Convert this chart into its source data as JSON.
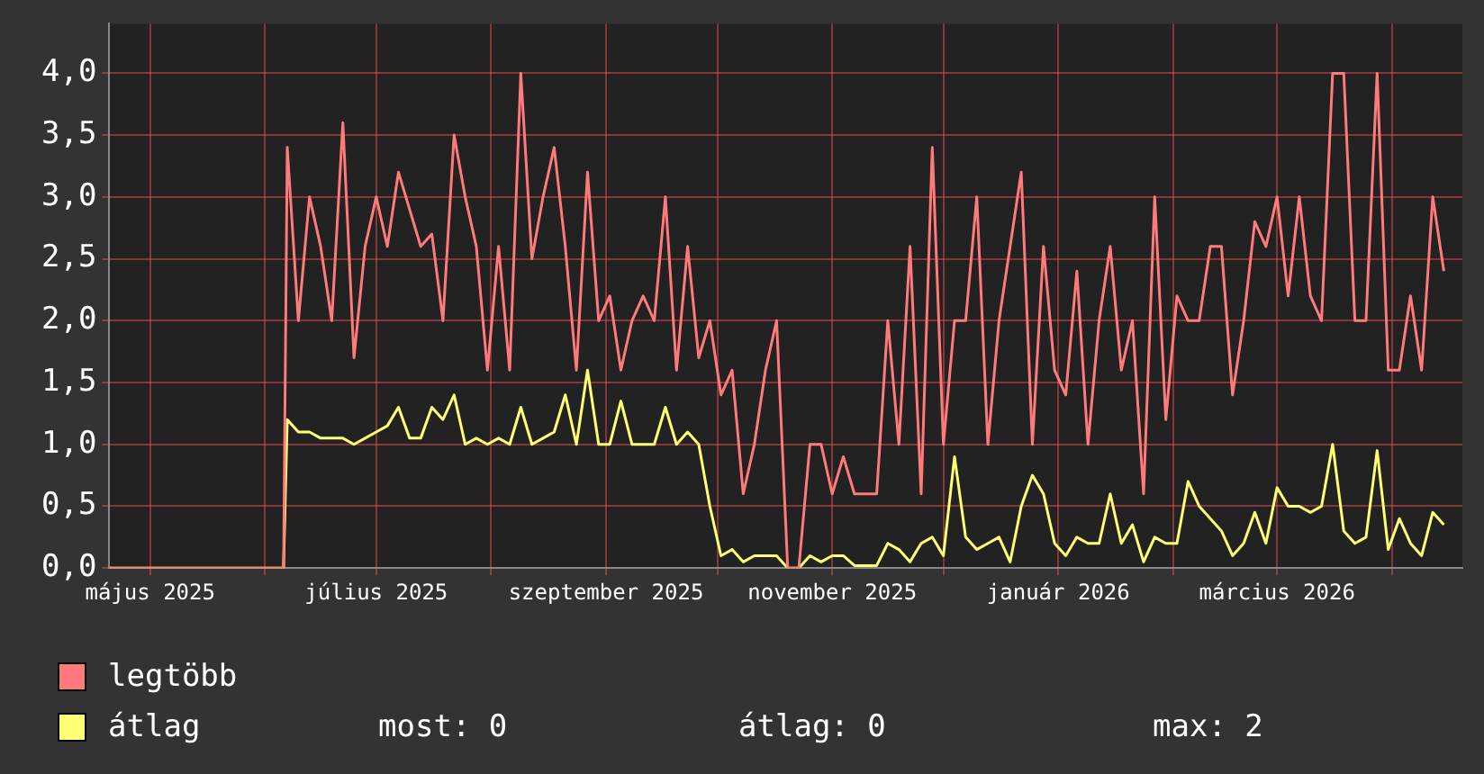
{
  "chart_data": {
    "type": "line",
    "x": [
      "2025-04-20",
      "2025-06-06",
      "2025-06-07",
      "2025-06-10",
      "2025-06-13",
      "2025-06-16",
      "2025-06-19",
      "2025-06-22",
      "2025-06-25",
      "2025-06-28",
      "2025-07-01",
      "2025-07-04",
      "2025-07-07",
      "2025-07-10",
      "2025-07-13",
      "2025-07-16",
      "2025-07-19",
      "2025-07-22",
      "2025-07-25",
      "2025-07-28",
      "2025-07-31",
      "2025-08-03",
      "2025-08-06",
      "2025-08-09",
      "2025-08-12",
      "2025-08-15",
      "2025-08-18",
      "2025-08-21",
      "2025-08-24",
      "2025-08-27",
      "2025-08-30",
      "2025-09-02",
      "2025-09-05",
      "2025-09-08",
      "2025-09-11",
      "2025-09-14",
      "2025-09-17",
      "2025-09-20",
      "2025-09-23",
      "2025-09-26",
      "2025-09-29",
      "2025-10-02",
      "2025-10-05",
      "2025-10-08",
      "2025-10-11",
      "2025-10-14",
      "2025-10-17",
      "2025-10-20",
      "2025-10-23",
      "2025-10-26",
      "2025-10-29",
      "2025-11-01",
      "2025-11-04",
      "2025-11-07",
      "2025-11-10",
      "2025-11-13",
      "2025-11-16",
      "2025-11-19",
      "2025-11-22",
      "2025-11-25",
      "2025-11-28",
      "2025-12-01",
      "2025-12-04",
      "2025-12-07",
      "2025-12-10",
      "2025-12-13",
      "2025-12-16",
      "2025-12-19",
      "2025-12-22",
      "2025-12-25",
      "2025-12-28",
      "2025-12-31",
      "2026-01-03",
      "2026-01-06",
      "2026-01-09",
      "2026-01-12",
      "2026-01-15",
      "2026-01-18",
      "2026-01-21",
      "2026-01-24",
      "2026-01-27",
      "2026-01-30",
      "2026-02-02",
      "2026-02-05",
      "2026-02-08",
      "2026-02-11",
      "2026-02-14",
      "2026-02-17",
      "2026-02-20",
      "2026-02-23",
      "2026-02-26",
      "2026-03-01",
      "2026-03-04",
      "2026-03-07",
      "2026-03-10",
      "2026-03-13",
      "2026-03-16",
      "2026-03-19",
      "2026-03-22",
      "2026-03-25",
      "2026-03-28",
      "2026-03-31",
      "2026-04-03",
      "2026-04-06",
      "2026-04-09",
      "2026-04-12",
      "2026-04-15"
    ],
    "series": [
      {
        "name": "legtöbb",
        "color": "#ff7b7b",
        "values": [
          0,
          0,
          3.4,
          2.0,
          3.0,
          2.6,
          2.0,
          3.6,
          1.7,
          2.6,
          3.0,
          2.6,
          3.2,
          2.9,
          2.6,
          2.7,
          2.0,
          3.5,
          3.0,
          2.6,
          1.6,
          2.6,
          1.6,
          4.0,
          2.5,
          3.0,
          3.4,
          2.6,
          1.6,
          3.2,
          2.0,
          2.2,
          1.6,
          2.0,
          2.2,
          2.0,
          3.0,
          1.6,
          2.6,
          1.7,
          2.0,
          1.4,
          1.6,
          0.6,
          1.0,
          1.6,
          2.0,
          0,
          0,
          1.0,
          1.0,
          0.6,
          0.9,
          0.6,
          0.6,
          0.6,
          2.0,
          1.0,
          2.6,
          0.6,
          3.4,
          1.0,
          2.0,
          2.0,
          3.0,
          1.0,
          2.0,
          2.6,
          3.2,
          1.0,
          2.6,
          1.6,
          1.4,
          2.4,
          1.0,
          2.0,
          2.6,
          1.6,
          2.0,
          0.6,
          3.0,
          1.2,
          2.2,
          2.0,
          2.0,
          2.6,
          2.6,
          1.4,
          2.0,
          2.8,
          2.6,
          3.0,
          2.2,
          3.0,
          2.2,
          2.0,
          4.0,
          4.0,
          2.0,
          2.0,
          4.0,
          1.6,
          1.6,
          2.2,
          1.6,
          3.0,
          2.4
        ]
      },
      {
        "name": "átlag",
        "color": "#ffff71",
        "values": [
          0,
          0,
          1.2,
          1.1,
          1.1,
          1.05,
          1.05,
          1.05,
          1.0,
          1.05,
          1.1,
          1.15,
          1.3,
          1.05,
          1.05,
          1.3,
          1.2,
          1.4,
          1.0,
          1.05,
          1.0,
          1.05,
          1.0,
          1.3,
          1.0,
          1.05,
          1.1,
          1.4,
          1.0,
          1.6,
          1.0,
          1.0,
          1.35,
          1.0,
          1.0,
          1.0,
          1.3,
          1.0,
          1.1,
          1.0,
          0.5,
          0.1,
          0.15,
          0.05,
          0.1,
          0.1,
          0.1,
          0,
          0,
          0.1,
          0.05,
          0.1,
          0.1,
          0.02,
          0.02,
          0.02,
          0.2,
          0.15,
          0.05,
          0.2,
          0.25,
          0.1,
          0.9,
          0.25,
          0.15,
          0.2,
          0.25,
          0.05,
          0.5,
          0.75,
          0.6,
          0.2,
          0.1,
          0.25,
          0.2,
          0.2,
          0.6,
          0.2,
          0.35,
          0.05,
          0.25,
          0.2,
          0.2,
          0.7,
          0.5,
          0.4,
          0.3,
          0.1,
          0.2,
          0.45,
          0.2,
          0.65,
          0.5,
          0.5,
          0.45,
          0.5,
          1.0,
          0.3,
          0.2,
          0.25,
          0.95,
          0.15,
          0.4,
          0.2,
          0.1,
          0.45,
          0.35
        ]
      }
    ],
    "xlim": [
      "2025-04-20",
      "2026-04-20"
    ],
    "xticks": [
      {
        "value": "2025-05-01",
        "label": "május 2025"
      },
      {
        "value": "2025-06-01",
        "label": null
      },
      {
        "value": "2025-07-01",
        "label": "július 2025"
      },
      {
        "value": "2025-08-01",
        "label": null
      },
      {
        "value": "2025-09-01",
        "label": "szeptember 2025"
      },
      {
        "value": "2025-10-01",
        "label": null
      },
      {
        "value": "2025-11-01",
        "label": "november 2025"
      },
      {
        "value": "2025-12-01",
        "label": null
      },
      {
        "value": "2026-01-01",
        "label": "január 2026"
      },
      {
        "value": "2026-02-01",
        "label": null
      },
      {
        "value": "2026-03-01",
        "label": "március 2026"
      },
      {
        "value": "2026-04-01",
        "label": null
      }
    ],
    "ylim": [
      0,
      4.4
    ],
    "yticks": [
      {
        "value": 0,
        "label": "0,0"
      },
      {
        "value": 0.5,
        "label": "0,5"
      },
      {
        "value": 1,
        "label": "1,0"
      },
      {
        "value": 1.5,
        "label": "1,5"
      },
      {
        "value": 2,
        "label": "2,0"
      },
      {
        "value": 2.5,
        "label": "2,5"
      },
      {
        "value": 3,
        "label": "3,0"
      },
      {
        "value": 3.5,
        "label": "3,5"
      },
      {
        "value": 4,
        "label": "4,0"
      }
    ],
    "grid": true,
    "legend": "bottom",
    "marker": "none",
    "line_style": "solid",
    "annotations": [
      "most: 0",
      "átlag: 0",
      "max: 2"
    ]
  }
}
